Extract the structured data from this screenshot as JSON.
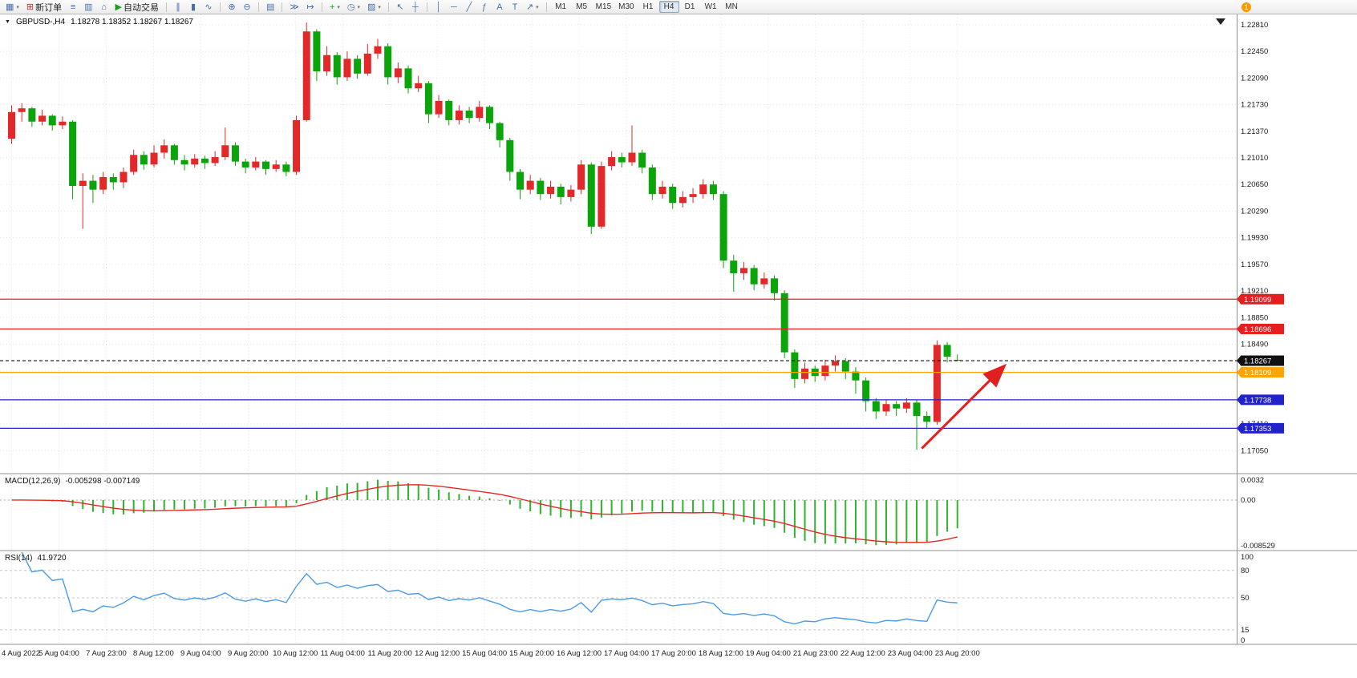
{
  "toolbar": {
    "notification_badge": "1",
    "groups": [
      {
        "items": [
          {
            "name": "new-chart-button",
            "glyph": "▦",
            "glyph_color": "#4A6EA8",
            "dropdown": true
          },
          {
            "name": "new-order-button",
            "glyph": "⊞",
            "glyph_color": "#C03030",
            "label": "新订单"
          },
          {
            "name": "market-watch-button",
            "glyph": "≡",
            "glyph_color": "#4A6EA8"
          },
          {
            "name": "data-window-button",
            "glyph": "▥",
            "glyph_color": "#4A6EA8"
          },
          {
            "name": "navigator-button",
            "glyph": "⌂",
            "glyph_color": "#4A6EA8"
          },
          {
            "name": "autotrading-button",
            "glyph": "▶",
            "glyph_color": "#18A018",
            "label": "自动交易"
          }
        ]
      },
      {
        "items": [
          {
            "name": "bars-chart-button",
            "glyph": "∥"
          },
          {
            "name": "candles-chart-button",
            "glyph": "▮"
          },
          {
            "name": "line-chart-button",
            "glyph": "∿"
          }
        ]
      },
      {
        "items": [
          {
            "name": "zoom-in-button",
            "glyph": "⊕"
          },
          {
            "name": "zoom-out-button",
            "glyph": "⊖"
          }
        ]
      },
      {
        "items": [
          {
            "name": "tile-windows-button",
            "glyph": "▤"
          }
        ]
      },
      {
        "items": [
          {
            "name": "auto-scroll-button",
            "glyph": "≫"
          },
          {
            "name": "chart-shift-button",
            "glyph": "↦"
          }
        ]
      },
      {
        "items": [
          {
            "name": "indicators-button",
            "glyph": "+",
            "glyph_color": "#18A018",
            "dropdown": true
          },
          {
            "name": "periods-button",
            "glyph": "◷",
            "dropdown": true
          },
          {
            "name": "templates-button",
            "glyph": "▨",
            "dropdown": true
          }
        ]
      },
      {
        "items": [
          {
            "name": "cursor-button",
            "glyph": "↖"
          },
          {
            "name": "crosshair-button",
            "glyph": "┼"
          }
        ]
      },
      {
        "items": [
          {
            "name": "vline-button",
            "glyph": "│"
          },
          {
            "name": "hline-button",
            "glyph": "─"
          },
          {
            "name": "trendline-button",
            "glyph": "╱"
          },
          {
            "name": "fibonacci-button",
            "glyph": "ƒ"
          },
          {
            "name": "text-button",
            "glyph": "A"
          },
          {
            "name": "text-label-button",
            "glyph": "T"
          },
          {
            "name": "arrows-button",
            "glyph": "↗",
            "dropdown": true
          }
        ]
      },
      {
        "items": [
          {
            "name": "timeframe-m1-button",
            "label": "M1",
            "timeframe": true
          },
          {
            "name": "timeframe-m5-button",
            "label": "M5",
            "timeframe": true
          },
          {
            "name": "timeframe-m15-button",
            "label": "M15",
            "timeframe": true
          },
          {
            "name": "timeframe-m30-button",
            "label": "M30",
            "timeframe": true
          },
          {
            "name": "timeframe-h1-button",
            "label": "H1",
            "timeframe": true
          },
          {
            "name": "timeframe-h4-button",
            "label": "H4",
            "timeframe": true,
            "active": true
          },
          {
            "name": "timeframe-d1-button",
            "label": "D1",
            "timeframe": true
          },
          {
            "name": "timeframe-w1-button",
            "label": "W1",
            "timeframe": true
          },
          {
            "name": "timeframe-mn-button",
            "label": "MN",
            "timeframe": true
          }
        ]
      }
    ]
  },
  "chart": {
    "one_click_icon": "▼",
    "symbol_period": "GBPUSD-,H4",
    "ohlc": "1.18278 1.18352 1.18267 1.18267"
  },
  "price_axis": {
    "labels": [
      "1.22810",
      "1.22450",
      "1.22090",
      "1.21730",
      "1.21370",
      "1.21010",
      "1.20650",
      "1.20290",
      "1.19930",
      "1.19570",
      "1.19210",
      "1.18850",
      "1.18490",
      "1.18130",
      "1.17770",
      "1.17410",
      "1.17050"
    ]
  },
  "time_axis": {
    "labels": [
      "4 Aug 2022",
      "5 Aug 04:00",
      "7 Aug 23:00",
      "8 Aug 12:00",
      "9 Aug 04:00",
      "9 Aug 20:00",
      "10 Aug 12:00",
      "11 Aug 04:00",
      "11 Aug 20:00",
      "12 Aug 12:00",
      "15 Aug 04:00",
      "15 Aug 20:00",
      "16 Aug 12:00",
      "17 Aug 04:00",
      "17 Aug 20:00",
      "18 Aug 12:00",
      "19 Aug 04:00",
      "21 Aug 23:00",
      "22 Aug 12:00",
      "23 Aug 04:00",
      "23 Aug 20:00"
    ]
  },
  "panels": {
    "macd": {
      "title": "MACD(12,26,9)",
      "values": "-0.005298 -0.007149",
      "axis_labels": [
        "0.0032",
        "0.00",
        "-0.008529"
      ]
    },
    "rsi": {
      "title": "RSI(14)",
      "values": "41.9720",
      "axis_labels": [
        "100",
        "80",
        "50",
        "15",
        "0"
      ]
    }
  },
  "colors": {
    "up": "#E22828",
    "down": "#0BA50B",
    "macd_bar": "#2FB32F",
    "macd_signal": "#E82820",
    "rsi_line": "#4D9BE6",
    "grid": "#E2E2E2",
    "axis_text": "#1A1A1A",
    "arrow": "#E02020",
    "splitter": "#909090"
  },
  "chart_data": {
    "type": "candlestick",
    "title": "GBPUSD-,H4",
    "symbol": "GBPUSD-",
    "timeframe": "H4",
    "y_range": [
      1.1675,
      1.2295
    ],
    "candles": [
      [
        1.2127,
        1.2172,
        1.212,
        1.2163
      ],
      [
        1.2163,
        1.2175,
        1.215,
        1.2168
      ],
      [
        1.2168,
        1.217,
        1.2143,
        1.215
      ],
      [
        1.215,
        1.2166,
        1.2145,
        1.2158
      ],
      [
        1.2158,
        1.216,
        1.2138,
        1.2145
      ],
      [
        1.2145,
        1.2157,
        1.214,
        1.215
      ],
      [
        1.215,
        1.2152,
        1.2045,
        1.2063
      ],
      [
        1.2063,
        1.208,
        1.2005,
        1.207
      ],
      [
        1.207,
        1.2078,
        1.204,
        1.2058
      ],
      [
        1.2058,
        1.2082,
        1.2052,
        1.2075
      ],
      [
        1.2075,
        1.208,
        1.2058,
        1.2068
      ],
      [
        1.2068,
        1.2088,
        1.206,
        1.2082
      ],
      [
        1.2082,
        1.2112,
        1.2078,
        1.2105
      ],
      [
        1.2105,
        1.211,
        1.2085,
        1.2092
      ],
      [
        1.2092,
        1.2118,
        1.2088,
        1.2108
      ],
      [
        1.2108,
        1.2126,
        1.21,
        1.2118
      ],
      [
        1.2118,
        1.212,
        1.2092,
        1.2098
      ],
      [
        1.2098,
        1.2105,
        1.2084,
        1.2092
      ],
      [
        1.2092,
        1.2106,
        1.2088,
        1.21
      ],
      [
        1.21,
        1.2104,
        1.2086,
        1.2094
      ],
      [
        1.2094,
        1.211,
        1.209,
        1.2102
      ],
      [
        1.2102,
        1.2142,
        1.2098,
        1.2118
      ],
      [
        1.2118,
        1.2122,
        1.209,
        1.2096
      ],
      [
        1.2096,
        1.21,
        1.208,
        1.2088
      ],
      [
        1.2088,
        1.2102,
        1.2084,
        1.2096
      ],
      [
        1.2096,
        1.2098,
        1.2078,
        1.2086
      ],
      [
        1.2086,
        1.2098,
        1.2082,
        1.2092
      ],
      [
        1.2092,
        1.2096,
        1.2076,
        1.2082
      ],
      [
        1.2082,
        1.2158,
        1.2078,
        1.2152
      ],
      [
        1.2152,
        1.2284,
        1.215,
        1.2272
      ],
      [
        1.2272,
        1.2275,
        1.2205,
        1.2218
      ],
      [
        1.2218,
        1.2252,
        1.2212,
        1.224
      ],
      [
        1.224,
        1.2244,
        1.22,
        1.221
      ],
      [
        1.221,
        1.2245,
        1.2205,
        1.2235
      ],
      [
        1.2235,
        1.224,
        1.2208,
        1.2215
      ],
      [
        1.2215,
        1.2255,
        1.2212,
        1.2242
      ],
      [
        1.2242,
        1.2262,
        1.2235,
        1.2252
      ],
      [
        1.2252,
        1.2256,
        1.22,
        1.221
      ],
      [
        1.221,
        1.223,
        1.2202,
        1.2222
      ],
      [
        1.2222,
        1.2226,
        1.2188,
        1.2195
      ],
      [
        1.2195,
        1.2212,
        1.219,
        1.2202
      ],
      [
        1.2202,
        1.2205,
        1.2148,
        1.216
      ],
      [
        1.216,
        1.2186,
        1.2155,
        1.2178
      ],
      [
        1.2178,
        1.218,
        1.2145,
        1.2152
      ],
      [
        1.2152,
        1.2172,
        1.2146,
        1.2165
      ],
      [
        1.2165,
        1.217,
        1.2148,
        1.2155
      ],
      [
        1.2155,
        1.2178,
        1.215,
        1.217
      ],
      [
        1.217,
        1.2172,
        1.214,
        1.2148
      ],
      [
        1.2148,
        1.215,
        1.2115,
        1.2125
      ],
      [
        1.2125,
        1.2128,
        1.207,
        1.2082
      ],
      [
        1.2082,
        1.2086,
        1.2045,
        1.2058
      ],
      [
        1.2058,
        1.2078,
        1.2052,
        1.207
      ],
      [
        1.207,
        1.2074,
        1.2044,
        1.2052
      ],
      [
        1.2052,
        1.207,
        1.2046,
        1.2062
      ],
      [
        1.2062,
        1.2066,
        1.2038,
        1.2048
      ],
      [
        1.2048,
        1.2064,
        1.2042,
        1.2058
      ],
      [
        1.2058,
        1.2098,
        1.2052,
        1.2092
      ],
      [
        1.2092,
        1.2095,
        1.1998,
        1.2008
      ],
      [
        1.2008,
        1.2096,
        1.2005,
        1.209
      ],
      [
        1.209,
        1.211,
        1.2084,
        1.2102
      ],
      [
        1.2102,
        1.2108,
        1.2088,
        1.2095
      ],
      [
        1.2095,
        1.2145,
        1.209,
        1.2108
      ],
      [
        1.2108,
        1.2112,
        1.208,
        1.2088
      ],
      [
        1.2088,
        1.2092,
        1.2044,
        1.2052
      ],
      [
        1.2052,
        1.207,
        1.2046,
        1.2062
      ],
      [
        1.2062,
        1.2066,
        1.2032,
        1.204
      ],
      [
        1.204,
        1.2056,
        1.2034,
        1.2048
      ],
      [
        1.2048,
        1.206,
        1.204,
        1.2052
      ],
      [
        1.2052,
        1.2072,
        1.2046,
        1.2065
      ],
      [
        1.2065,
        1.207,
        1.2044,
        1.2052
      ],
      [
        1.2052,
        1.2056,
        1.1952,
        1.1962
      ],
      [
        1.1962,
        1.197,
        1.192,
        1.1945
      ],
      [
        1.1945,
        1.196,
        1.1936,
        1.1952
      ],
      [
        1.1952,
        1.1956,
        1.1922,
        1.193
      ],
      [
        1.193,
        1.1946,
        1.1924,
        1.1938
      ],
      [
        1.1938,
        1.1942,
        1.1908,
        1.1918
      ],
      [
        1.1918,
        1.1922,
        1.183,
        1.1838
      ],
      [
        1.1838,
        1.1842,
        1.179,
        1.1802
      ],
      [
        1.1802,
        1.1824,
        1.1796,
        1.1816
      ],
      [
        1.1816,
        1.182,
        1.1798,
        1.1806
      ],
      [
        1.1806,
        1.1828,
        1.18,
        1.182
      ],
      [
        1.182,
        1.1834,
        1.1812,
        1.1826
      ],
      [
        1.1826,
        1.183,
        1.1802,
        1.1812
      ],
      [
        1.1812,
        1.1818,
        1.1782,
        1.18
      ],
      [
        1.18,
        1.1804,
        1.1758,
        1.1772
      ],
      [
        1.1772,
        1.1776,
        1.1748,
        1.1758
      ],
      [
        1.1758,
        1.1774,
        1.1752,
        1.1768
      ],
      [
        1.1768,
        1.1772,
        1.1752,
        1.1762
      ],
      [
        1.1762,
        1.1776,
        1.1756,
        1.177
      ],
      [
        1.177,
        1.1774,
        1.1706,
        1.1752
      ],
      [
        1.1752,
        1.1758,
        1.1736,
        1.1744
      ],
      [
        1.1744,
        1.1854,
        1.174,
        1.1848
      ],
      [
        1.1848,
        1.1852,
        1.1824,
        1.1832
      ],
      [
        1.18278,
        1.18352,
        1.18267,
        1.18267
      ]
    ],
    "hlines": [
      {
        "price": 1.19099,
        "label": "1.19099",
        "color": "#E61E1E",
        "style": "solid"
      },
      {
        "price": 1.18696,
        "label": "1.18696",
        "color": "#E61E1E",
        "style": "solid"
      },
      {
        "price": 1.18267,
        "label": "1.18267",
        "color": "#111111",
        "style": "dash",
        "current": true
      },
      {
        "price": 1.18109,
        "label": "1.18109",
        "color": "#FFA400",
        "style": "solid"
      },
      {
        "price": 1.17738,
        "label": "1.17738",
        "color": "#2222CC",
        "style": "solid"
      },
      {
        "price": 1.17353,
        "label": "1.17353",
        "color": "#2222CC",
        "style": "solid"
      }
    ],
    "arrow": {
      "from": [
        89.5,
        1.1708
      ],
      "to": [
        97.5,
        1.1818
      ],
      "color": "#E02020"
    },
    "macd": {
      "fast": 12,
      "slow": 26,
      "signal": 9,
      "axis_max": 0.0032,
      "axis_min": -0.008529
    },
    "rsi": {
      "period": 14,
      "levels": [
        80,
        50,
        15
      ],
      "range": [
        0,
        100
      ]
    }
  }
}
